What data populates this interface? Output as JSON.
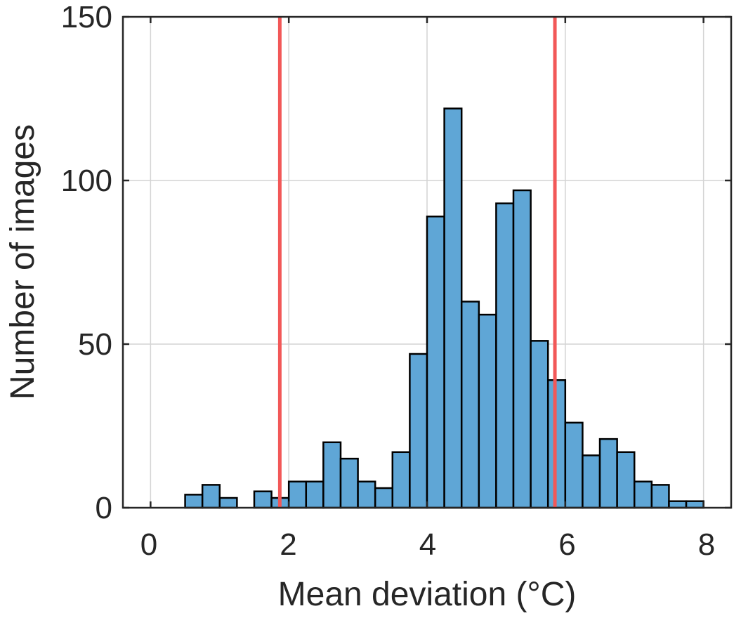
{
  "chart_data": {
    "type": "bar",
    "title": "",
    "xlabel": "Mean deviation (°C)",
    "ylabel": "Number of images",
    "xlim": [
      -0.4,
      8.4
    ],
    "ylim": [
      0,
      150
    ],
    "x_ticks": [
      "0",
      "2",
      "4",
      "6",
      "8"
    ],
    "y_ticks": [
      "0",
      "50",
      "100",
      "150"
    ],
    "grid": true,
    "bin_width": 0.25,
    "bin_start": 0.5,
    "values": [
      4,
      7,
      3,
      0,
      5,
      3,
      8,
      8,
      20,
      15,
      8,
      6,
      17,
      47,
      89,
      122,
      63,
      59,
      93,
      97,
      51,
      39,
      26,
      16,
      21,
      17,
      8,
      7,
      2,
      2
    ],
    "vertical_lines": [
      1.87,
      5.85
    ],
    "colors": {
      "bar_fill": "#5fa6d6",
      "bar_edge": "#000000",
      "reference_line": "#f25858",
      "grid": "#d4d4d4",
      "axis": "#262626"
    }
  }
}
